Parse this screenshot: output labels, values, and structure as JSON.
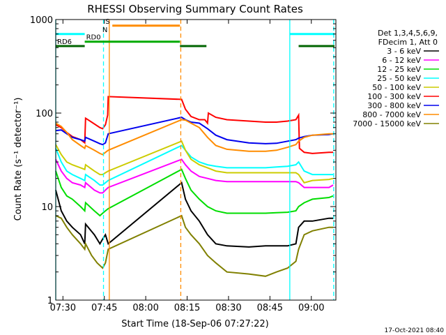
{
  "chart_data": {
    "type": "line",
    "title": "RHESSI Observing Summary Count Rates",
    "xlabel": "Start Time (18-Sep-06 07:27:22)",
    "ylabel": "Count Rate (s⁻¹ detector⁻¹)",
    "x_unit": "minutes after 07:27:22",
    "xlim": [
      0,
      101.5
    ],
    "ylim": [
      1,
      1000
    ],
    "yscale": "log",
    "x_ticks": [
      {
        "x": 2.6,
        "label": "07:30"
      },
      {
        "x": 17.6,
        "label": "07:45"
      },
      {
        "x": 32.6,
        "label": "08:00"
      },
      {
        "x": 47.6,
        "label": "08:15"
      },
      {
        "x": 62.6,
        "label": "08:30"
      },
      {
        "x": 77.6,
        "label": "08:45"
      },
      {
        "x": 92.6,
        "label": "09:00"
      }
    ],
    "y_ticks": [
      {
        "y": 1,
        "label": "1"
      },
      {
        "y": 10,
        "label": "10"
      },
      {
        "y": 100,
        "label": "100"
      },
      {
        "y": 1000,
        "label": "1000"
      }
    ],
    "legend": {
      "header": [
        "Det 1,3,4,5,6,9,",
        "FDecim 1, Att 0"
      ],
      "placement": "right"
    },
    "series": [
      {
        "name": "3 - 6 keV",
        "color": "#000000",
        "points": [
          [
            0,
            15
          ],
          [
            2,
            9
          ],
          [
            4,
            7
          ],
          [
            6,
            6
          ],
          [
            9,
            5
          ],
          [
            10.5,
            4
          ],
          [
            10.8,
            6.5
          ],
          [
            14,
            5
          ],
          [
            16,
            4
          ],
          [
            17,
            4.5
          ],
          [
            18,
            5
          ],
          [
            19,
            4
          ],
          [
            45.6,
            18
          ],
          [
            47,
            12
          ],
          [
            49,
            9
          ],
          [
            52,
            7
          ],
          [
            55,
            5
          ],
          [
            58,
            4
          ],
          [
            62,
            3.8
          ],
          [
            70,
            3.7
          ],
          [
            76,
            3.8
          ],
          [
            80,
            3.8
          ],
          [
            84,
            3.8
          ],
          [
            87,
            4
          ],
          [
            88,
            6
          ],
          [
            90,
            7
          ],
          [
            93,
            7
          ],
          [
            99,
            7.5
          ],
          [
            100.5,
            7.5
          ]
        ]
      },
      {
        "name": "6 - 12 keV",
        "color": "#ff00ff",
        "points": [
          [
            0,
            32
          ],
          [
            2,
            24
          ],
          [
            4,
            20
          ],
          [
            6,
            18
          ],
          [
            9,
            17
          ],
          [
            10.5,
            16
          ],
          [
            10.8,
            18
          ],
          [
            14,
            15
          ],
          [
            16,
            14
          ],
          [
            17,
            14
          ],
          [
            18,
            15
          ],
          [
            19,
            16
          ],
          [
            45.6,
            32
          ],
          [
            47,
            28
          ],
          [
            49,
            24
          ],
          [
            52,
            21
          ],
          [
            55,
            20
          ],
          [
            58,
            19
          ],
          [
            62,
            18.5
          ],
          [
            70,
            18.5
          ],
          [
            76,
            18.5
          ],
          [
            80,
            18.5
          ],
          [
            84,
            18.5
          ],
          [
            87,
            18.5
          ],
          [
            88,
            18
          ],
          [
            90,
            16
          ],
          [
            93,
            16
          ],
          [
            99,
            16
          ],
          [
            100.5,
            17
          ]
        ]
      },
      {
        "name": "12 - 25 keV",
        "color": "#00dd00",
        "points": [
          [
            0,
            24
          ],
          [
            2,
            16
          ],
          [
            4,
            13
          ],
          [
            6,
            12
          ],
          [
            9,
            10
          ],
          [
            10.5,
            9
          ],
          [
            10.8,
            11
          ],
          [
            14,
            9
          ],
          [
            16,
            8
          ],
          [
            17,
            8.5
          ],
          [
            18,
            9
          ],
          [
            19,
            9.5
          ],
          [
            45.6,
            25
          ],
          [
            47,
            20
          ],
          [
            49,
            15
          ],
          [
            52,
            12
          ],
          [
            55,
            10
          ],
          [
            58,
            9
          ],
          [
            62,
            8.5
          ],
          [
            70,
            8.5
          ],
          [
            76,
            8.5
          ],
          [
            80,
            8.6
          ],
          [
            84,
            8.7
          ],
          [
            87,
            9
          ],
          [
            88,
            10
          ],
          [
            90,
            11
          ],
          [
            93,
            12
          ],
          [
            99,
            12.5
          ],
          [
            100.5,
            13
          ]
        ]
      },
      {
        "name": "25 - 50 keV",
        "color": "#00ffff",
        "points": [
          [
            0,
            42
          ],
          [
            2,
            30
          ],
          [
            4,
            24
          ],
          [
            6,
            22
          ],
          [
            9,
            20
          ],
          [
            10.5,
            19
          ],
          [
            10.8,
            22
          ],
          [
            14,
            19
          ],
          [
            16,
            17
          ],
          [
            17,
            17
          ],
          [
            18,
            18
          ],
          [
            19,
            19
          ],
          [
            45.6,
            45
          ],
          [
            47,
            40
          ],
          [
            49,
            34
          ],
          [
            52,
            30
          ],
          [
            55,
            28
          ],
          [
            58,
            27
          ],
          [
            62,
            26
          ],
          [
            70,
            26
          ],
          [
            76,
            26
          ],
          [
            80,
            26.5
          ],
          [
            84,
            27
          ],
          [
            87,
            28
          ],
          [
            88,
            30
          ],
          [
            90,
            24
          ],
          [
            93,
            22
          ],
          [
            99,
            22
          ],
          [
            100.5,
            22
          ]
        ]
      },
      {
        "name": "50 - 100 keV",
        "color": "#cccc00",
        "points": [
          [
            0,
            46
          ],
          [
            2,
            36
          ],
          [
            4,
            30
          ],
          [
            6,
            28
          ],
          [
            9,
            26
          ],
          [
            10.5,
            25
          ],
          [
            10.8,
            28
          ],
          [
            14,
            24
          ],
          [
            16,
            22
          ],
          [
            17,
            22
          ],
          [
            18,
            23
          ],
          [
            19,
            24
          ],
          [
            45.6,
            50
          ],
          [
            47,
            40
          ],
          [
            49,
            32
          ],
          [
            52,
            28
          ],
          [
            55,
            26
          ],
          [
            58,
            24
          ],
          [
            62,
            23
          ],
          [
            70,
            23
          ],
          [
            76,
            23
          ],
          [
            80,
            23
          ],
          [
            84,
            23
          ],
          [
            87,
            23
          ],
          [
            88,
            22
          ],
          [
            90,
            18
          ],
          [
            93,
            19
          ],
          [
            99,
            19.5
          ],
          [
            100.5,
            20
          ]
        ]
      },
      {
        "name": "100 - 300 keV",
        "color": "#ff0000",
        "points": [
          [
            0,
            75
          ],
          [
            2,
            70
          ],
          [
            4,
            62
          ],
          [
            6,
            56
          ],
          [
            9,
            52
          ],
          [
            10.5,
            48
          ],
          [
            10.8,
            88
          ],
          [
            13,
            80
          ],
          [
            16,
            70
          ],
          [
            17,
            68
          ],
          [
            18,
            75
          ],
          [
            18.8,
            95
          ],
          [
            19,
            150
          ],
          [
            45.6,
            140
          ],
          [
            47,
            110
          ],
          [
            49,
            92
          ],
          [
            52,
            85
          ],
          [
            54,
            85
          ],
          [
            55,
            78
          ],
          [
            55.3,
            100
          ],
          [
            58,
            90
          ],
          [
            62,
            85
          ],
          [
            70,
            82
          ],
          [
            76,
            80
          ],
          [
            80,
            80
          ],
          [
            84,
            82
          ],
          [
            87,
            85
          ],
          [
            88,
            95
          ],
          [
            88.3,
            42
          ],
          [
            90,
            38
          ],
          [
            93,
            37
          ],
          [
            99,
            38
          ],
          [
            100.5,
            38
          ]
        ]
      },
      {
        "name": "300 - 800 keV",
        "color": "#0000ee",
        "points": [
          [
            0,
            65
          ],
          [
            2,
            66
          ],
          [
            4,
            60
          ],
          [
            6,
            55
          ],
          [
            9,
            52
          ],
          [
            10.5,
            50
          ],
          [
            10.8,
            55
          ],
          [
            14,
            50
          ],
          [
            16,
            47
          ],
          [
            17,
            46
          ],
          [
            18,
            48
          ],
          [
            19,
            60
          ],
          [
            45.6,
            90
          ],
          [
            47,
            85
          ],
          [
            49,
            80
          ],
          [
            52,
            78
          ],
          [
            55,
            68
          ],
          [
            58,
            58
          ],
          [
            62,
            52
          ],
          [
            70,
            48
          ],
          [
            76,
            47
          ],
          [
            80,
            47.5
          ],
          [
            84,
            50
          ],
          [
            87,
            52
          ],
          [
            88,
            54
          ],
          [
            90,
            56
          ],
          [
            93,
            58
          ],
          [
            99,
            59
          ],
          [
            100.5,
            60
          ]
        ]
      },
      {
        "name": "800 - 7000 keV",
        "color": "#ff8c00",
        "points": [
          [
            0,
            78
          ],
          [
            2,
            72
          ],
          [
            4,
            62
          ],
          [
            6,
            52
          ],
          [
            9,
            45
          ],
          [
            10.5,
            42
          ],
          [
            10.8,
            45
          ],
          [
            14,
            40
          ],
          [
            16,
            37
          ],
          [
            17,
            36
          ],
          [
            18,
            38
          ],
          [
            19,
            40
          ],
          [
            45.6,
            85
          ],
          [
            47,
            84
          ],
          [
            49,
            78
          ],
          [
            52,
            70
          ],
          [
            55,
            55
          ],
          [
            58,
            45
          ],
          [
            62,
            41
          ],
          [
            70,
            39
          ],
          [
            76,
            39
          ],
          [
            80,
            40
          ],
          [
            84,
            43
          ],
          [
            87,
            46
          ],
          [
            88,
            50
          ],
          [
            90,
            55
          ],
          [
            93,
            58
          ],
          [
            99,
            60
          ],
          [
            100.5,
            60
          ]
        ]
      },
      {
        "name": "7000 - 15000 keV",
        "color": "#808000",
        "points": [
          [
            0,
            8
          ],
          [
            2,
            7.5
          ],
          [
            4,
            6
          ],
          [
            6,
            5
          ],
          [
            9,
            4
          ],
          [
            10.5,
            3.5
          ],
          [
            10.8,
            4
          ],
          [
            13,
            3
          ],
          [
            15,
            2.5
          ],
          [
            17,
            2.2
          ],
          [
            18,
            2.5
          ],
          [
            19,
            3.5
          ],
          [
            45.6,
            8
          ],
          [
            47,
            6
          ],
          [
            49,
            5
          ],
          [
            52,
            4
          ],
          [
            55,
            3
          ],
          [
            58,
            2.5
          ],
          [
            62,
            2
          ],
          [
            70,
            1.9
          ],
          [
            76,
            1.8
          ],
          [
            80,
            2
          ],
          [
            84,
            2.2
          ],
          [
            87,
            2.6
          ],
          [
            88,
            3.5
          ],
          [
            90,
            5
          ],
          [
            93,
            5.5
          ],
          [
            99,
            6
          ],
          [
            100.5,
            6
          ]
        ]
      }
    ],
    "state_bars": [
      {
        "label": "",
        "color": "#00ffff",
        "level": 700,
        "segments": [
          [
            0,
            10.5
          ],
          [
            84.8,
            101
          ]
        ]
      },
      {
        "label": "RD0",
        "color": "#00aa00",
        "level": 580,
        "segments": [
          [
            10.5,
            45
          ]
        ]
      },
      {
        "label": "RD6",
        "color": "#006400",
        "level": 520,
        "segments": [
          [
            0,
            10.5
          ],
          [
            45,
            54.6
          ],
          [
            88,
            101
          ]
        ]
      },
      {
        "label": "S",
        "color": "#ff8c00",
        "level": 860,
        "segments": [
          [
            20.5,
            45
          ]
        ]
      },
      {
        "label": "N",
        "color": "#00bbff",
        "level": 700,
        "segments": []
      }
    ],
    "vlines": [
      {
        "x": 0,
        "color": "#00ffff",
        "style": "solid"
      },
      {
        "x": 17.3,
        "color": "#00ffff",
        "style": "dashed"
      },
      {
        "x": 19.4,
        "color": "#ff8c00",
        "style": "solid"
      },
      {
        "x": 45.3,
        "color": "#ff8c00",
        "style": "dashed"
      },
      {
        "x": 84.8,
        "color": "#00ffff",
        "style": "solid"
      },
      {
        "x": 100.7,
        "color": "#00ffff",
        "style": "dashed"
      }
    ],
    "footer_stamp": "17-Oct-2021 08:40"
  }
}
